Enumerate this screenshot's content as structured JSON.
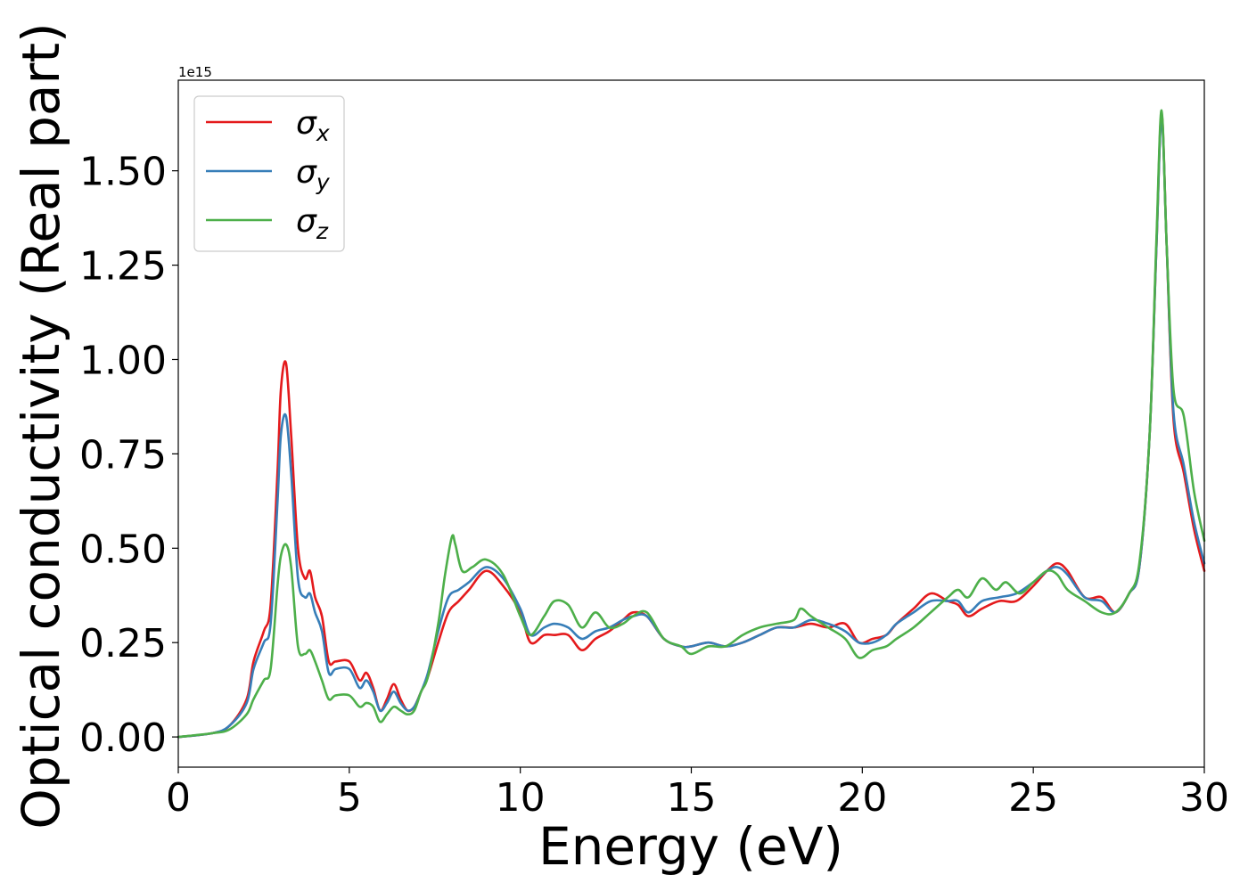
{
  "chart_data": {
    "type": "line",
    "title": "",
    "xlabel": "Energy (eV)",
    "ylabel": "Optical conductivity (Real part)",
    "scale_note": "1e15",
    "xlim": [
      0,
      30
    ],
    "ylim": [
      -0.08,
      1.74
    ],
    "xticks": [
      0,
      5,
      10,
      15,
      20,
      25,
      30
    ],
    "xtick_labels": [
      "0",
      "5",
      "10",
      "15",
      "20",
      "25",
      "30"
    ],
    "yticks": [
      0.0,
      0.25,
      0.5,
      0.75,
      1.0,
      1.25,
      1.5
    ],
    "ytick_labels": [
      "0.00",
      "0.25",
      "0.50",
      "0.75",
      "1.00",
      "1.25",
      "1.50"
    ],
    "grid": false,
    "legend_position": "top-left",
    "series": [
      {
        "name": "σ",
        "sub": "x",
        "color": "#e41a1c",
        "x": [
          0,
          1,
          1.5,
          2,
          2.2,
          2.5,
          2.7,
          2.9,
          3.0,
          3.15,
          3.3,
          3.5,
          3.7,
          3.85,
          4.0,
          4.2,
          4.4,
          4.6,
          5.0,
          5.3,
          5.5,
          5.7,
          5.9,
          6.1,
          6.3,
          6.5,
          6.7,
          6.9,
          7.1,
          7.3,
          7.6,
          7.9,
          8.2,
          8.5,
          9.0,
          9.5,
          10.0,
          10.3,
          10.7,
          11.0,
          11.4,
          11.8,
          12.2,
          12.6,
          13.0,
          13.3,
          13.7,
          14.2,
          14.7,
          15.0,
          15.5,
          16.0,
          16.5,
          17.0,
          17.5,
          18.0,
          18.5,
          19.0,
          19.5,
          19.9,
          20.3,
          20.7,
          21.0,
          21.5,
          22.0,
          22.5,
          22.8,
          23.1,
          23.5,
          24.0,
          24.5,
          25.0,
          25.4,
          25.7,
          26.0,
          26.5,
          27.0,
          27.4,
          27.8,
          28.1,
          28.4,
          28.6,
          28.75,
          28.9,
          29.1,
          29.4,
          29.7,
          30.0
        ],
        "y": [
          0.0,
          0.01,
          0.03,
          0.1,
          0.2,
          0.28,
          0.35,
          0.7,
          0.92,
          0.99,
          0.8,
          0.5,
          0.42,
          0.44,
          0.37,
          0.32,
          0.2,
          0.2,
          0.2,
          0.15,
          0.17,
          0.13,
          0.07,
          0.1,
          0.14,
          0.1,
          0.07,
          0.08,
          0.12,
          0.16,
          0.25,
          0.33,
          0.36,
          0.39,
          0.44,
          0.4,
          0.33,
          0.25,
          0.27,
          0.27,
          0.27,
          0.23,
          0.26,
          0.28,
          0.31,
          0.33,
          0.32,
          0.26,
          0.24,
          0.24,
          0.25,
          0.24,
          0.25,
          0.27,
          0.29,
          0.29,
          0.3,
          0.29,
          0.3,
          0.25,
          0.26,
          0.27,
          0.3,
          0.34,
          0.38,
          0.36,
          0.35,
          0.32,
          0.34,
          0.36,
          0.36,
          0.4,
          0.44,
          0.46,
          0.44,
          0.37,
          0.37,
          0.33,
          0.38,
          0.45,
          0.8,
          1.3,
          1.65,
          1.3,
          0.84,
          0.7,
          0.55,
          0.44
        ]
      },
      {
        "name": "σ",
        "sub": "y",
        "color": "#377eb8",
        "x": [
          0,
          1,
          1.5,
          2,
          2.2,
          2.5,
          2.7,
          2.9,
          3.0,
          3.15,
          3.3,
          3.5,
          3.7,
          3.85,
          4.0,
          4.2,
          4.4,
          4.6,
          5.0,
          5.3,
          5.5,
          5.7,
          5.9,
          6.1,
          6.3,
          6.5,
          6.7,
          6.9,
          7.1,
          7.3,
          7.6,
          7.9,
          8.2,
          8.5,
          9.0,
          9.5,
          10.0,
          10.3,
          10.7,
          11.0,
          11.4,
          11.8,
          12.2,
          12.6,
          13.0,
          13.3,
          13.7,
          14.2,
          14.7,
          15.0,
          15.5,
          16.0,
          16.5,
          17.0,
          17.5,
          18.0,
          18.5,
          19.0,
          19.5,
          19.9,
          20.3,
          20.7,
          21.0,
          21.5,
          22.0,
          22.5,
          22.8,
          23.1,
          23.5,
          24.0,
          24.5,
          25.0,
          25.4,
          25.7,
          26.0,
          26.5,
          27.0,
          27.4,
          27.8,
          28.1,
          28.4,
          28.6,
          28.75,
          28.9,
          29.1,
          29.4,
          29.7,
          30.0
        ],
        "y": [
          0.0,
          0.01,
          0.03,
          0.09,
          0.18,
          0.25,
          0.3,
          0.62,
          0.8,
          0.85,
          0.7,
          0.42,
          0.37,
          0.38,
          0.33,
          0.28,
          0.17,
          0.18,
          0.18,
          0.13,
          0.15,
          0.12,
          0.07,
          0.09,
          0.12,
          0.09,
          0.07,
          0.08,
          0.12,
          0.17,
          0.28,
          0.37,
          0.39,
          0.41,
          0.45,
          0.42,
          0.34,
          0.27,
          0.29,
          0.3,
          0.29,
          0.26,
          0.28,
          0.29,
          0.31,
          0.32,
          0.32,
          0.26,
          0.24,
          0.24,
          0.25,
          0.24,
          0.25,
          0.27,
          0.29,
          0.29,
          0.31,
          0.3,
          0.28,
          0.25,
          0.25,
          0.27,
          0.3,
          0.33,
          0.36,
          0.36,
          0.36,
          0.33,
          0.36,
          0.37,
          0.38,
          0.41,
          0.44,
          0.45,
          0.43,
          0.37,
          0.36,
          0.33,
          0.38,
          0.45,
          0.8,
          1.3,
          1.64,
          1.3,
          0.86,
          0.72,
          0.57,
          0.46
        ]
      },
      {
        "name": "σ",
        "sub": "z",
        "color": "#4daf4a",
        "x": [
          0,
          1,
          1.5,
          2,
          2.2,
          2.5,
          2.7,
          2.9,
          3.0,
          3.15,
          3.3,
          3.5,
          3.7,
          3.85,
          4.0,
          4.2,
          4.4,
          4.6,
          5.0,
          5.3,
          5.5,
          5.7,
          5.9,
          6.1,
          6.3,
          6.5,
          6.7,
          6.9,
          7.1,
          7.3,
          7.6,
          7.8,
          8.0,
          8.1,
          8.3,
          8.6,
          9.0,
          9.5,
          10.0,
          10.3,
          10.7,
          11.0,
          11.4,
          11.8,
          12.2,
          12.6,
          13.0,
          13.3,
          13.7,
          14.2,
          14.7,
          15.0,
          15.5,
          16.0,
          16.5,
          17.0,
          17.5,
          18.0,
          18.2,
          18.5,
          19.0,
          19.5,
          19.9,
          20.3,
          20.7,
          21.0,
          21.5,
          22.0,
          22.5,
          22.8,
          23.1,
          23.5,
          23.9,
          24.2,
          24.6,
          25.0,
          25.4,
          25.7,
          26.0,
          26.5,
          27.0,
          27.4,
          27.8,
          28.1,
          28.4,
          28.6,
          28.75,
          28.9,
          29.1,
          29.4,
          29.7,
          30.0
        ],
        "y": [
          0.0,
          0.01,
          0.02,
          0.06,
          0.1,
          0.15,
          0.18,
          0.4,
          0.48,
          0.51,
          0.45,
          0.24,
          0.22,
          0.23,
          0.2,
          0.15,
          0.1,
          0.11,
          0.11,
          0.08,
          0.09,
          0.08,
          0.04,
          0.06,
          0.08,
          0.07,
          0.06,
          0.07,
          0.12,
          0.16,
          0.3,
          0.43,
          0.53,
          0.51,
          0.44,
          0.45,
          0.47,
          0.43,
          0.32,
          0.27,
          0.32,
          0.36,
          0.35,
          0.29,
          0.33,
          0.29,
          0.3,
          0.32,
          0.33,
          0.26,
          0.24,
          0.22,
          0.24,
          0.24,
          0.27,
          0.29,
          0.3,
          0.31,
          0.34,
          0.32,
          0.29,
          0.26,
          0.21,
          0.23,
          0.24,
          0.26,
          0.29,
          0.33,
          0.37,
          0.39,
          0.37,
          0.42,
          0.39,
          0.41,
          0.38,
          0.41,
          0.44,
          0.43,
          0.39,
          0.36,
          0.33,
          0.33,
          0.38,
          0.46,
          0.8,
          1.32,
          1.66,
          1.3,
          0.92,
          0.85,
          0.65,
          0.52
        ]
      }
    ]
  }
}
